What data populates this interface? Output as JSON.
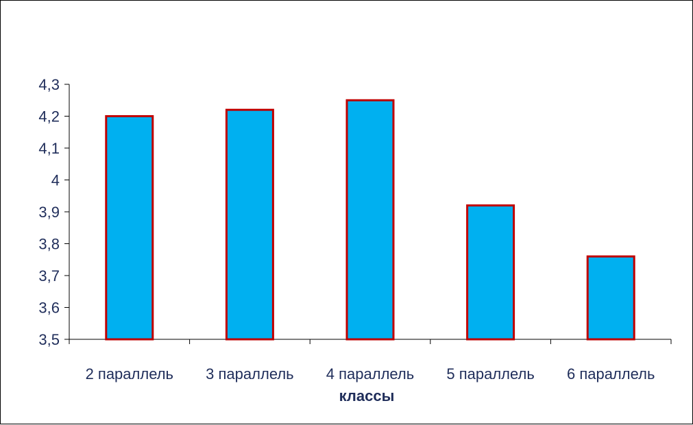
{
  "chart_data": {
    "type": "bar",
    "title": "",
    "xlabel": "классы",
    "ylabel": "",
    "categories": [
      "2 параллель",
      "3 параллель",
      "4 параллель",
      "5 параллель",
      "6 параллель"
    ],
    "values": [
      4.2,
      4.22,
      4.25,
      3.92,
      3.76
    ],
    "ylim": [
      3.5,
      4.3
    ],
    "yticks": [
      "3,5",
      "3,6",
      "3,7",
      "3,8",
      "3,9",
      "4",
      "4,1",
      "4,2",
      "4,3"
    ],
    "grid": false,
    "legend": "none",
    "colors": {
      "bar_fill": "#00b0f0",
      "bar_border": "#c00000",
      "axis": "#000000",
      "text": "#1f2d5a"
    }
  }
}
